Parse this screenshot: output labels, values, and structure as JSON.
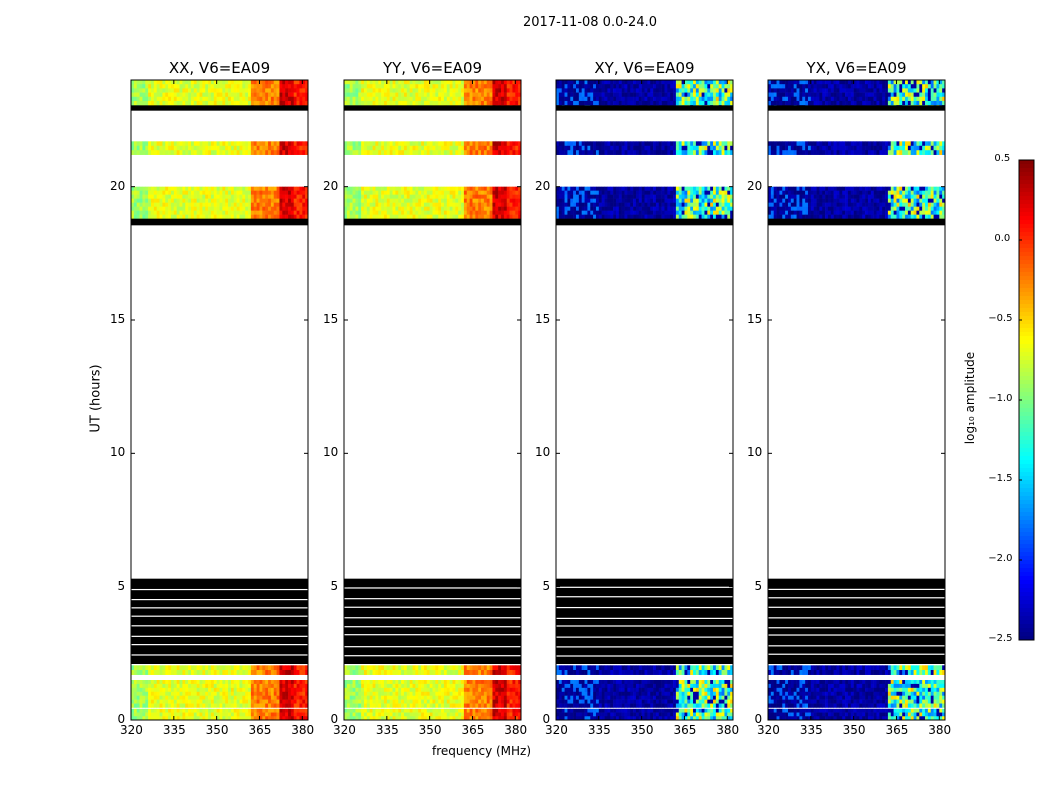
{
  "suptitle": "2017-11-08 0.0-24.0",
  "colorbar": {
    "label": "log₁₀ amplitude",
    "min": -2.5,
    "max": 0.5,
    "ticks": [
      "0.5",
      "0.0",
      "−0.5",
      "−1.0",
      "−1.5",
      "−2.0",
      "−2.5"
    ],
    "tick_values": [
      0.5,
      0.0,
      -0.5,
      -1.0,
      -1.5,
      -2.0,
      -2.5
    ],
    "colormap": "jet"
  },
  "chart_data": {
    "type": "heatmap",
    "xlabel": "frequency (MHz)",
    "ylabel": "UT (hours)",
    "xlim": [
      320,
      382
    ],
    "ylim": [
      0,
      24
    ],
    "xticks": [
      320,
      335,
      350,
      365,
      380
    ],
    "yticks": [
      0,
      5,
      10,
      15,
      20
    ],
    "panels": [
      {
        "title": "XX, V6=EA09",
        "kind": "parallel"
      },
      {
        "title": "YY, V6=EA09",
        "kind": "parallel"
      },
      {
        "title": "XY, V6=EA09",
        "kind": "cross"
      },
      {
        "title": "YX, V6=EA09",
        "kind": "cross"
      }
    ],
    "data_time_ranges": [
      [
        0.0,
        0.42
      ],
      [
        0.47,
        1.5
      ],
      [
        1.7,
        2.05
      ],
      [
        18.8,
        20.0
      ],
      [
        21.2,
        21.7
      ],
      [
        22.9,
        24.0
      ]
    ],
    "flagged_time_ranges": [
      [
        2.1,
        5.3
      ],
      [
        18.55,
        18.8
      ],
      [
        22.85,
        23.05
      ]
    ],
    "parallel_hand_levels": [
      {
        "freq_range": [
          320,
          362
        ],
        "level": -0.7
      },
      {
        "freq_range": [
          362,
          372
        ],
        "level": -0.25
      },
      {
        "freq_range": [
          372,
          377
        ],
        "level": 0.25
      },
      {
        "freq_range": [
          377,
          382
        ],
        "level": 0.05
      }
    ],
    "cross_hand_levels": [
      {
        "freq_range": [
          320,
          362
        ],
        "level": -2.4
      },
      {
        "freq_range": [
          362,
          382
        ],
        "level": -1.0
      }
    ]
  }
}
